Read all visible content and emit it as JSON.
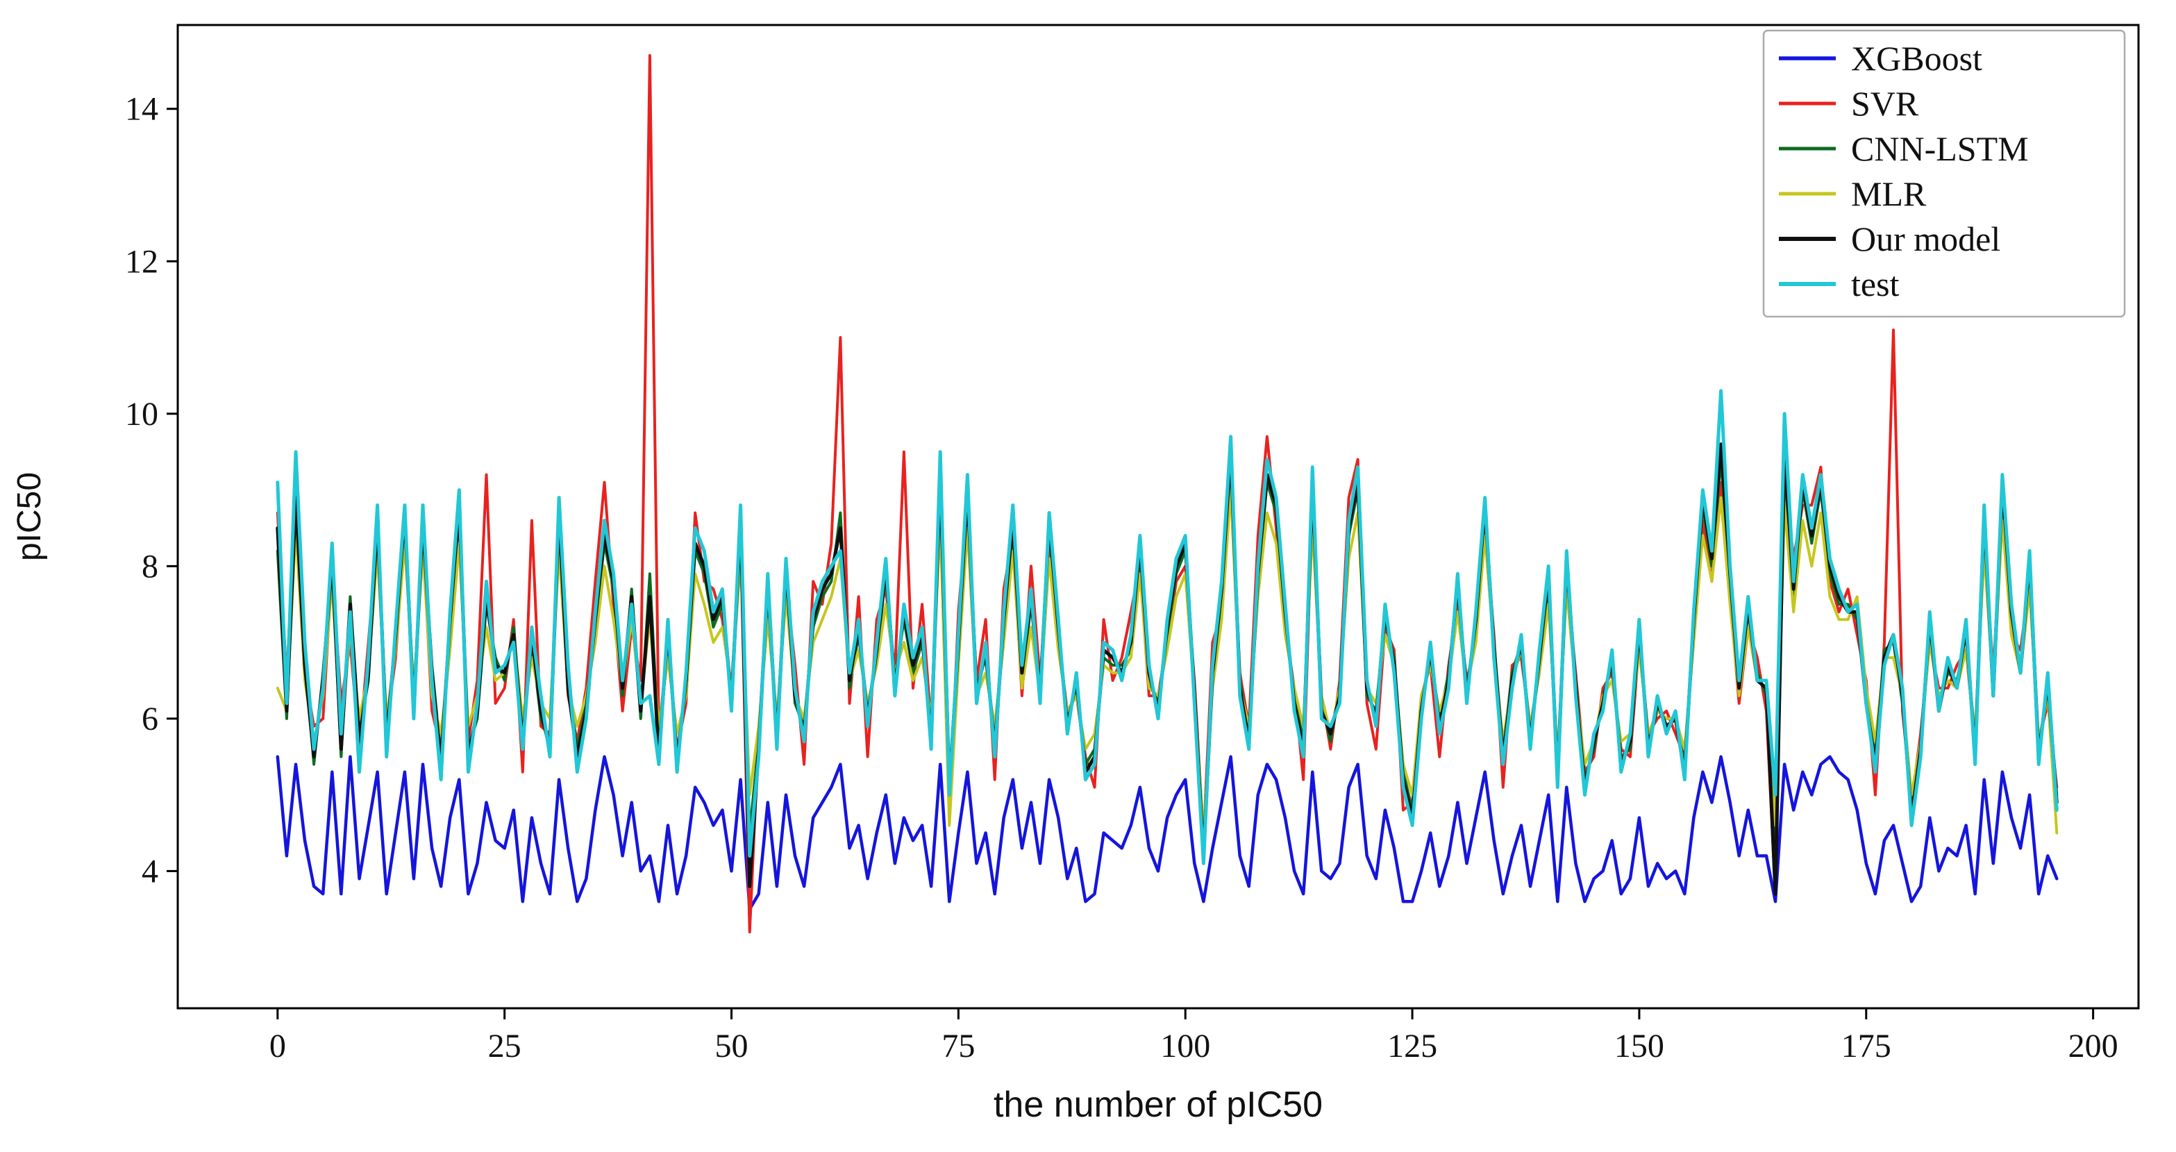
{
  "chart_data": {
    "type": "line",
    "title": "",
    "xlabel": "the number of pIC50",
    "ylabel": "pIC50",
    "xlim": [
      -11,
      205
    ],
    "ylim": [
      2.2,
      15.1
    ],
    "xticks": [
      0,
      25,
      50,
      75,
      100,
      125,
      150,
      175,
      200
    ],
    "yticks": [
      4,
      6,
      8,
      10,
      12,
      14
    ],
    "grid": false,
    "legend_position": "upper right",
    "x_start": 0,
    "x_step": 1,
    "series": [
      {
        "name": "XGBoost",
        "color": "#1515dd",
        "lw": 4.5,
        "values": [
          5.5,
          4.2,
          5.4,
          4.4,
          3.8,
          3.7,
          5.3,
          3.7,
          5.5,
          3.9,
          4.6,
          5.3,
          3.7,
          4.5,
          5.3,
          3.9,
          5.4,
          4.3,
          3.8,
          4.7,
          5.2,
          3.7,
          4.1,
          4.9,
          4.4,
          4.3,
          4.8,
          3.6,
          4.7,
          4.1,
          3.7,
          5.2,
          4.3,
          3.6,
          3.9,
          4.8,
          5.5,
          5.0,
          4.2,
          4.9,
          4.0,
          4.2,
          3.6,
          4.6,
          3.7,
          4.2,
          5.1,
          4.9,
          4.6,
          4.8,
          4.0,
          5.2,
          3.5,
          3.7,
          4.9,
          3.8,
          5.0,
          4.2,
          3.8,
          4.7,
          4.9,
          5.1,
          5.4,
          4.3,
          4.6,
          3.9,
          4.5,
          5.0,
          4.1,
          4.7,
          4.4,
          4.6,
          3.8,
          5.4,
          3.6,
          4.5,
          5.3,
          4.1,
          4.5,
          3.7,
          4.7,
          5.2,
          4.3,
          4.9,
          4.1,
          5.2,
          4.7,
          3.9,
          4.3,
          3.6,
          3.7,
          4.5,
          4.4,
          4.3,
          4.6,
          5.1,
          4.3,
          4.0,
          4.7,
          5.0,
          5.2,
          4.1,
          3.6,
          4.3,
          4.9,
          5.5,
          4.2,
          3.8,
          5.0,
          5.4,
          5.2,
          4.7,
          4.0,
          3.7,
          5.3,
          4.0,
          3.9,
          4.1,
          5.1,
          5.4,
          4.2,
          3.9,
          4.8,
          4.3,
          3.6,
          3.6,
          4.0,
          4.5,
          3.8,
          4.2,
          4.9,
          4.1,
          4.7,
          5.3,
          4.4,
          3.7,
          4.2,
          4.6,
          3.8,
          4.4,
          5.0,
          3.6,
          5.1,
          4.1,
          3.6,
          3.9,
          4.0,
          4.4,
          3.7,
          3.9,
          4.7,
          3.8,
          4.1,
          3.9,
          4.0,
          3.7,
          4.7,
          5.3,
          4.9,
          5.5,
          4.9,
          4.2,
          4.8,
          4.2,
          4.2,
          3.6,
          5.4,
          4.8,
          5.3,
          5.0,
          5.4,
          5.5,
          5.3,
          5.2,
          4.8,
          4.1,
          3.7,
          4.4,
          4.6,
          4.1,
          3.6,
          3.8,
          4.7,
          4.0,
          4.3,
          4.2,
          4.6,
          3.7,
          5.2,
          4.1,
          5.3,
          4.7,
          4.3,
          5.0,
          3.7,
          4.2,
          3.9
        ]
      },
      {
        "name": "SVR",
        "color": "#e8221f",
        "lw": 4,
        "values": [
          8.7,
          6.5,
          9.0,
          6.6,
          5.9,
          6.0,
          8.0,
          6.2,
          7.0,
          5.6,
          7.0,
          8.4,
          5.9,
          6.8,
          8.5,
          6.3,
          8.4,
          6.1,
          5.6,
          7.0,
          8.6,
          5.7,
          6.5,
          9.2,
          6.2,
          6.4,
          7.3,
          5.3,
          8.6,
          5.9,
          5.8,
          8.5,
          6.3,
          5.7,
          6.4,
          7.8,
          9.1,
          7.5,
          6.1,
          7.2,
          6.5,
          14.7,
          5.8,
          7.0,
          5.6,
          6.2,
          8.7,
          7.8,
          7.7,
          7.3,
          6.4,
          8.4,
          3.2,
          5.8,
          7.5,
          5.9,
          7.8,
          6.7,
          5.4,
          7.8,
          7.5,
          8.3,
          11.0,
          6.2,
          7.6,
          5.5,
          7.3,
          7.7,
          6.6,
          9.5,
          6.4,
          7.5,
          5.9,
          9.1,
          4.7,
          7.4,
          8.8,
          6.5,
          7.3,
          5.2,
          7.7,
          8.4,
          6.3,
          8.0,
          6.5,
          8.3,
          7.0,
          6.1,
          6.3,
          5.5,
          5.1,
          7.3,
          6.5,
          6.8,
          7.4,
          8.0,
          6.3,
          6.3,
          7.0,
          7.8,
          8.0,
          6.5,
          4.4,
          7.0,
          7.4,
          9.3,
          6.6,
          5.9,
          8.4,
          9.7,
          8.5,
          7.2,
          6.4,
          5.2,
          8.9,
          6.3,
          5.6,
          6.5,
          8.9,
          9.4,
          6.2,
          5.6,
          7.2,
          6.9,
          4.8,
          4.9,
          6.3,
          6.7,
          5.5,
          6.7,
          7.5,
          6.5,
          7.0,
          8.5,
          7.1,
          5.1,
          6.7,
          6.8,
          5.9,
          6.6,
          7.7,
          5.4,
          7.8,
          6.6,
          5.3,
          5.5,
          6.4,
          6.6,
          5.6,
          5.5,
          7.0,
          5.8,
          6.0,
          6.1,
          5.8,
          5.5,
          7.1,
          8.6,
          7.8,
          9.1,
          7.6,
          6.2,
          7.2,
          6.8,
          6.1,
          3.7,
          9.2,
          8.1,
          8.8,
          8.8,
          9.3,
          7.8,
          7.4,
          7.7,
          7.1,
          6.5,
          5.0,
          7.0,
          11.1,
          6.1,
          4.9,
          5.8,
          7.0,
          6.4,
          6.4,
          6.7,
          6.9,
          5.7,
          8.4,
          6.6,
          8.8,
          7.1,
          6.9,
          7.8,
          5.7,
          6.2,
          5.1
        ]
      },
      {
        "name": "CNN-LSTM",
        "color": "#0d6b21",
        "lw": 4,
        "values": [
          8.2,
          6.0,
          8.8,
          6.8,
          5.4,
          6.6,
          8.0,
          5.5,
          7.6,
          5.8,
          6.5,
          8.7,
          5.8,
          7.0,
          8.6,
          6.2,
          8.5,
          6.7,
          5.5,
          7.2,
          8.7,
          5.6,
          6.0,
          7.5,
          6.8,
          6.5,
          7.2,
          5.8,
          7.0,
          6.0,
          5.7,
          8.6,
          6.5,
          5.6,
          6.2,
          7.2,
          8.3,
          7.7,
          6.3,
          7.7,
          6.0,
          7.9,
          5.6,
          7.1,
          5.5,
          6.4,
          8.2,
          7.9,
          7.2,
          7.5,
          6.3,
          8.5,
          4.5,
          5.7,
          7.7,
          5.8,
          7.9,
          6.2,
          5.9,
          7.2,
          7.6,
          7.8,
          8.7,
          6.4,
          7.1,
          6.1,
          6.8,
          7.9,
          6.5,
          7.3,
          6.6,
          7.0,
          5.8,
          9.0,
          5.2,
          6.9,
          8.9,
          6.4,
          6.8,
          5.7,
          7.2,
          8.5,
          6.5,
          7.5,
          6.4,
          8.5,
          7.1,
          6.0,
          6.4,
          5.4,
          5.6,
          6.8,
          6.7,
          6.7,
          6.9,
          8.2,
          6.5,
          6.2,
          7.1,
          7.9,
          8.2,
          6.4,
          4.3,
          6.5,
          7.6,
          9.4,
          6.5,
          5.8,
          7.8,
          9.1,
          8.7,
          7.3,
          6.3,
          5.7,
          9.0,
          6.2,
          5.7,
          6.4,
          8.4,
          9.0,
          6.3,
          6.1,
          7.3,
          6.8,
          5.3,
          4.8,
          6.2,
          6.8,
          6.0,
          6.6,
          7.7,
          6.4,
          7.2,
          8.7,
          7.0,
          5.6,
          6.6,
          7.0,
          5.8,
          6.7,
          7.8,
          5.3,
          8.0,
          6.5,
          5.2,
          5.6,
          6.3,
          6.7,
          5.5,
          5.6,
          7.1,
          5.7,
          6.1,
          6.0,
          6.0,
          5.4,
          7.2,
          8.8,
          8.0,
          9.4,
          7.8,
          6.3,
          7.4,
          6.6,
          6.3,
          4.2,
          9.3,
          7.6,
          9.0,
          8.3,
          9.0,
          7.9,
          7.5,
          7.5,
          7.3,
          6.3,
          5.5,
          6.9,
          7.0,
          6.2,
          4.8,
          5.6,
          7.2,
          6.2,
          6.6,
          6.5,
          7.1,
          5.6,
          8.6,
          6.4,
          9.0,
          7.3,
          6.7,
          8.0,
          5.6,
          6.4,
          5.0
        ]
      },
      {
        "name": "MLR",
        "color": "#c6c61e",
        "lw": 4,
        "values": [
          6.4,
          6.1,
          8.5,
          6.5,
          5.7,
          6.3,
          7.8,
          5.7,
          7.2,
          6.0,
          6.6,
          8.2,
          6.0,
          6.9,
          8.3,
          6.4,
          8.2,
          6.3,
          5.8,
          6.9,
          8.3,
          5.9,
          6.3,
          7.2,
          6.5,
          6.6,
          7.1,
          6.0,
          6.8,
          6.2,
          6.0,
          8.2,
          6.4,
          5.9,
          6.3,
          7.0,
          8.0,
          7.3,
          6.4,
          7.3,
          6.2,
          7.3,
          5.9,
          6.8,
          5.8,
          6.3,
          7.9,
          7.5,
          7.0,
          7.2,
          6.4,
          8.1,
          5.0,
          5.9,
          7.3,
          6.0,
          7.6,
          6.3,
          6.0,
          7.0,
          7.3,
          7.6,
          8.1,
          6.5,
          6.9,
          6.2,
          6.7,
          7.5,
          6.6,
          7.0,
          6.5,
          6.8,
          6.0,
          8.6,
          4.6,
          6.7,
          8.5,
          6.3,
          6.6,
          5.9,
          7.0,
          8.2,
          6.4,
          7.2,
          6.3,
          8.1,
          6.9,
          6.1,
          6.3,
          5.6,
          5.8,
          6.7,
          6.6,
          6.6,
          6.8,
          7.9,
          6.4,
          6.3,
          6.9,
          7.6,
          7.9,
          6.3,
          4.5,
          6.4,
          7.3,
          9.0,
          6.4,
          5.9,
          7.6,
          8.7,
          8.3,
          7.1,
          6.4,
          5.9,
          8.5,
          6.3,
          5.8,
          6.4,
          8.1,
          8.7,
          6.4,
          6.2,
          7.1,
          6.7,
          5.4,
          5.0,
          6.3,
          6.7,
          6.1,
          6.5,
          7.4,
          6.4,
          7.0,
          8.4,
          6.9,
          5.7,
          6.5,
          6.9,
          5.9,
          6.6,
          7.5,
          5.5,
          7.7,
          6.4,
          5.4,
          5.7,
          6.3,
          6.5,
          5.7,
          5.8,
          6.9,
          5.8,
          6.1,
          6.0,
          6.0,
          5.6,
          7.0,
          8.4,
          7.8,
          8.9,
          7.5,
          6.3,
          7.2,
          6.5,
          6.4,
          4.6,
          8.8,
          7.4,
          8.6,
          8.0,
          8.7,
          7.6,
          7.3,
          7.3,
          7.6,
          6.4,
          5.7,
          6.8,
          6.8,
          6.3,
          5.0,
          5.7,
          7.0,
          6.3,
          6.5,
          6.4,
          6.9,
          5.8,
          8.2,
          6.4,
          8.6,
          7.1,
          6.6,
          7.7,
          5.7,
          6.3,
          4.5
        ]
      },
      {
        "name": "Our model",
        "color": "#101010",
        "lw": 5,
        "values": [
          8.5,
          6.1,
          8.9,
          6.7,
          5.5,
          6.5,
          8.1,
          5.6,
          7.5,
          5.7,
          6.6,
          8.6,
          5.7,
          7.1,
          8.7,
          6.1,
          8.6,
          6.6,
          5.4,
          7.3,
          8.8,
          5.5,
          6.1,
          7.6,
          6.7,
          6.6,
          7.1,
          5.7,
          7.1,
          6.1,
          5.6,
          8.7,
          6.4,
          5.5,
          6.1,
          7.3,
          8.4,
          7.8,
          6.4,
          7.6,
          6.1,
          7.6,
          5.5,
          7.2,
          5.4,
          6.5,
          8.3,
          8.0,
          7.3,
          7.6,
          6.2,
          8.6,
          3.8,
          5.6,
          7.8,
          5.7,
          8.0,
          6.3,
          5.8,
          7.3,
          7.7,
          7.9,
          8.5,
          6.5,
          7.2,
          6.0,
          6.9,
          8.0,
          6.4,
          7.4,
          6.7,
          7.1,
          5.7,
          9.2,
          5.1,
          7.0,
          9.0,
          6.3,
          6.9,
          5.6,
          7.3,
          8.6,
          6.6,
          7.6,
          6.3,
          8.6,
          7.2,
          5.9,
          6.5,
          5.3,
          5.5,
          6.9,
          6.8,
          6.6,
          7.0,
          8.3,
          6.6,
          6.1,
          7.2,
          8.0,
          8.3,
          6.3,
          4.2,
          6.6,
          7.7,
          9.5,
          6.4,
          5.7,
          7.9,
          9.2,
          8.8,
          7.4,
          6.2,
          5.6,
          9.1,
          6.1,
          5.8,
          6.3,
          8.5,
          9.1,
          6.4,
          6.0,
          7.4,
          6.7,
          5.2,
          4.7,
          6.1,
          6.9,
          5.9,
          6.5,
          7.8,
          6.3,
          7.3,
          8.8,
          6.9,
          5.5,
          6.5,
          7.0,
          5.7,
          6.8,
          7.9,
          5.2,
          8.1,
          6.4,
          5.1,
          5.7,
          6.2,
          6.8,
          5.4,
          5.7,
          7.2,
          5.6,
          6.2,
          5.9,
          6.0,
          5.3,
          7.3,
          8.9,
          8.1,
          9.6,
          7.9,
          6.4,
          7.5,
          6.5,
          6.4,
          3.7,
          9.5,
          7.7,
          9.1,
          8.4,
          9.1,
          8.0,
          7.6,
          7.4,
          7.4,
          6.2,
          5.4,
          6.8,
          7.1,
          6.3,
          4.7,
          5.6,
          7.3,
          6.1,
          6.7,
          6.4,
          7.2,
          5.5,
          8.7,
          6.3,
          9.1,
          7.4,
          6.6,
          8.1,
          5.5,
          6.5,
          4.9
        ]
      },
      {
        "name": "test",
        "color": "#22c7d6",
        "lw": 5,
        "values": [
          9.1,
          6.2,
          9.5,
          7.0,
          5.6,
          6.4,
          8.3,
          5.8,
          7.4,
          5.3,
          6.8,
          8.8,
          5.5,
          7.2,
          8.8,
          6.0,
          8.8,
          6.5,
          5.2,
          7.4,
          9.0,
          5.3,
          6.2,
          7.8,
          6.6,
          6.7,
          7.0,
          5.6,
          7.2,
          6.3,
          5.5,
          8.9,
          6.7,
          5.3,
          6.0,
          7.4,
          8.6,
          7.9,
          6.5,
          7.5,
          6.2,
          6.3,
          5.4,
          7.3,
          5.3,
          6.6,
          8.5,
          8.2,
          7.4,
          7.7,
          6.1,
          8.8,
          4.2,
          5.5,
          7.9,
          5.6,
          8.1,
          6.4,
          5.7,
          7.4,
          7.8,
          8.0,
          8.2,
          6.6,
          7.3,
          5.9,
          7.0,
          8.1,
          6.3,
          7.5,
          6.8,
          7.2,
          5.6,
          9.5,
          5.0,
          7.1,
          9.2,
          6.2,
          7.0,
          5.5,
          7.4,
          8.8,
          6.7,
          7.7,
          6.2,
          8.7,
          7.3,
          5.8,
          6.6,
          5.2,
          5.4,
          7.0,
          6.9,
          6.5,
          7.1,
          8.4,
          6.7,
          6.0,
          7.3,
          8.1,
          8.4,
          6.2,
          4.1,
          6.7,
          7.8,
          9.7,
          6.3,
          5.6,
          8.0,
          9.4,
          8.9,
          7.5,
          6.1,
          5.5,
          9.3,
          6.0,
          5.9,
          6.2,
          8.6,
          9.3,
          6.5,
          5.9,
          7.5,
          6.6,
          5.1,
          4.6,
          6.0,
          7.0,
          5.8,
          6.4,
          7.9,
          6.2,
          7.4,
          8.9,
          6.8,
          5.4,
          6.4,
          7.1,
          5.6,
          6.9,
          8.0,
          5.1,
          8.2,
          6.3,
          5.0,
          5.8,
          6.1,
          6.9,
          5.3,
          5.8,
          7.3,
          5.5,
          6.3,
          5.8,
          6.1,
          5.2,
          7.4,
          9.0,
          8.2,
          10.3,
          8.0,
          6.5,
          7.6,
          6.5,
          6.5,
          5.0,
          10.0,
          7.8,
          9.2,
          8.5,
          9.2,
          8.1,
          7.7,
          7.4,
          7.5,
          6.2,
          5.3,
          6.7,
          7.1,
          6.4,
          4.6,
          5.5,
          7.4,
          6.1,
          6.8,
          6.4,
          7.3,
          5.4,
          8.8,
          6.3,
          9.2,
          7.5,
          6.6,
          8.2,
          5.4,
          6.6,
          4.8
        ]
      }
    ]
  }
}
